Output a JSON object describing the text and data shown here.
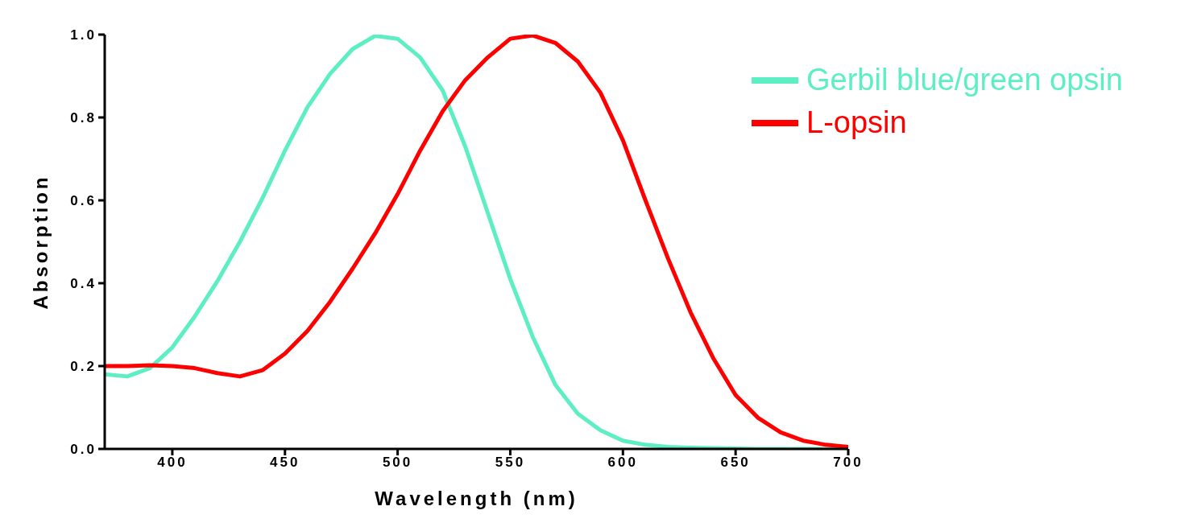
{
  "chart_data": {
    "type": "line",
    "xlabel": "Wavelength (nm)",
    "ylabel": "Absorption",
    "x": [
      370,
      380,
      390,
      400,
      410,
      420,
      430,
      440,
      450,
      460,
      470,
      480,
      490,
      500,
      510,
      520,
      530,
      540,
      550,
      560,
      570,
      580,
      590,
      600,
      610,
      620,
      630,
      640,
      650,
      660,
      670,
      680,
      690,
      700
    ],
    "series": [
      {
        "name": "Gerbil blue/green opsin",
        "color": "#5eeec4",
        "values": [
          0.18,
          0.175,
          0.195,
          0.245,
          0.32,
          0.405,
          0.5,
          0.605,
          0.72,
          0.825,
          0.905,
          0.965,
          0.997,
          0.99,
          0.945,
          0.865,
          0.73,
          0.57,
          0.41,
          0.27,
          0.155,
          0.085,
          0.045,
          0.02,
          0.01,
          0.005,
          0.003,
          0.002,
          0.001,
          0,
          0,
          0,
          0,
          0
        ]
      },
      {
        "name": "L-opsin",
        "color": "#ff0000",
        "values": [
          0.2,
          0.2,
          0.202,
          0.2,
          0.195,
          0.183,
          0.175,
          0.19,
          0.23,
          0.285,
          0.355,
          0.435,
          0.52,
          0.615,
          0.72,
          0.815,
          0.89,
          0.945,
          0.99,
          0.998,
          0.98,
          0.935,
          0.86,
          0.745,
          0.6,
          0.46,
          0.33,
          0.22,
          0.13,
          0.075,
          0.04,
          0.02,
          0.01,
          0.005
        ]
      }
    ],
    "xlim": [
      370,
      700
    ],
    "xticks": [
      400,
      450,
      500,
      550,
      600,
      650,
      700
    ],
    "ylim": [
      0,
      1
    ],
    "yticks": [
      {
        "value": 0,
        "label": "0.0"
      },
      {
        "value": 0.2,
        "label": "0.2"
      },
      {
        "value": 0.4,
        "label": "0.4"
      },
      {
        "value": 0.6,
        "label": "0.6"
      },
      {
        "value": 0.8,
        "label": "0.8"
      },
      {
        "value": 1,
        "label": "1.0"
      }
    ],
    "grid": false,
    "legend": "top right",
    "marker": "none",
    "line_style": "solid"
  }
}
